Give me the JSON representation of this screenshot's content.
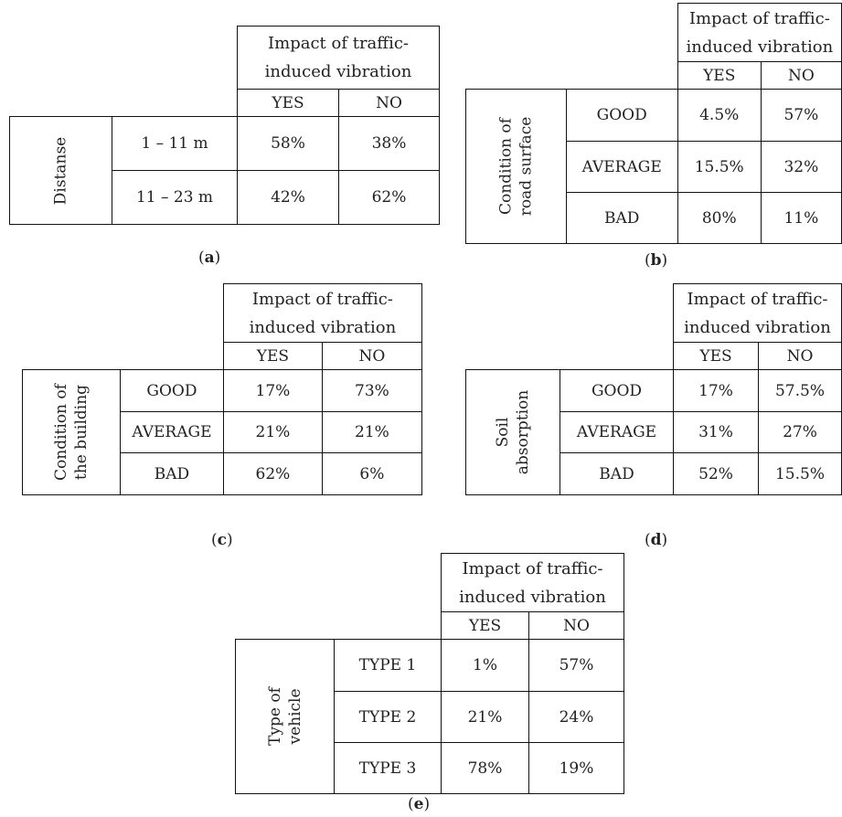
{
  "header": {
    "line1": "Impact of traffic-",
    "line2": "induced vibration",
    "yes": "YES",
    "no": "NO"
  },
  "tables": {
    "a": {
      "caption_letter": "a",
      "row_group": [
        "Distanse"
      ],
      "rows": [
        {
          "label": "1 – 11 m",
          "yes": "58%",
          "no": "38%"
        },
        {
          "label": "11 – 23 m",
          "yes": "42%",
          "no": "62%"
        }
      ]
    },
    "b": {
      "caption_letter": "b",
      "row_group": [
        "Condition of",
        "road surface"
      ],
      "rows": [
        {
          "label": "GOOD",
          "yes": "4.5%",
          "no": "57%"
        },
        {
          "label": "AVERAGE",
          "yes": "15.5%",
          "no": "32%"
        },
        {
          "label": "BAD",
          "yes": "80%",
          "no": "11%"
        }
      ]
    },
    "c": {
      "caption_letter": "c",
      "row_group": [
        "Condition of",
        "the building"
      ],
      "rows": [
        {
          "label": "GOOD",
          "yes": "17%",
          "no": "73%"
        },
        {
          "label": "AVERAGE",
          "yes": "21%",
          "no": "21%"
        },
        {
          "label": "BAD",
          "yes": "62%",
          "no": "6%"
        }
      ]
    },
    "d": {
      "caption_letter": "d",
      "row_group": [
        "Soil",
        "absorption"
      ],
      "rows": [
        {
          "label": "GOOD",
          "yes": "17%",
          "no": "57.5%"
        },
        {
          "label": "AVERAGE",
          "yes": "31%",
          "no": "27%"
        },
        {
          "label": "BAD",
          "yes": "52%",
          "no": "15.5%"
        }
      ]
    },
    "e": {
      "caption_letter": "e",
      "row_group": [
        "Type of",
        "vehicle"
      ],
      "rows": [
        {
          "label": "TYPE 1",
          "yes": "1%",
          "no": "57%"
        },
        {
          "label": "TYPE 2",
          "yes": "21%",
          "no": "24%"
        },
        {
          "label": "TYPE 3",
          "yes": "78%",
          "no": "19%"
        }
      ]
    }
  }
}
